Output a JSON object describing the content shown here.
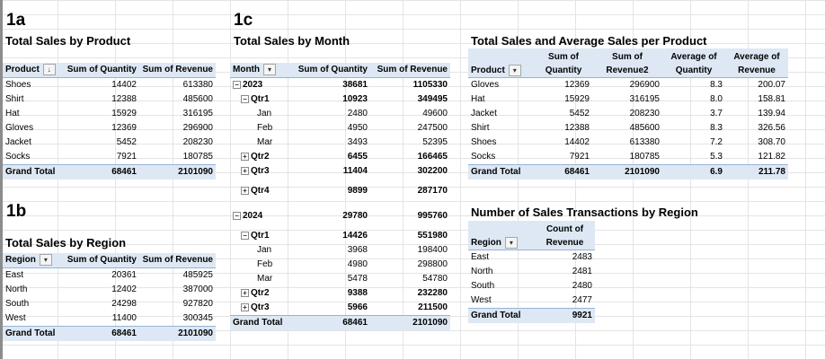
{
  "sections": {
    "s1a": "1a",
    "s1b": "1b",
    "s1c": "1c"
  },
  "icons": {
    "filter_dropdown": "chevron-down-icon",
    "sort_filter": "sort-filter-icon",
    "collapse": "minus-box-icon",
    "expand": "plus-box-icon"
  },
  "colors": {
    "pivot_header_bg": "#dde8f4",
    "pivot_border": "#95b3d7",
    "gridline": "#e4e4e4"
  },
  "product_pivot": {
    "title": "Total Sales by Product",
    "headers": [
      "Product",
      "Sum of Quantity",
      "Sum of Revenue"
    ],
    "rows": [
      [
        "Shoes",
        "14402",
        "613380"
      ],
      [
        "Shirt",
        "12388",
        "485600"
      ],
      [
        "Hat",
        "15929",
        "316195"
      ],
      [
        "Gloves",
        "12369",
        "296900"
      ],
      [
        "Jacket",
        "5452",
        "208230"
      ],
      [
        "Socks",
        "7921",
        "180785"
      ]
    ],
    "total": [
      "Grand Total",
      "68461",
      "2101090"
    ]
  },
  "region_pivot": {
    "title": "Total Sales by Region",
    "headers": [
      "Region",
      "Sum of Quantity",
      "Sum of Revenue"
    ],
    "rows": [
      [
        "East",
        "20361",
        "485925"
      ],
      [
        "North",
        "12402",
        "387000"
      ],
      [
        "South",
        "24298",
        "927820"
      ],
      [
        "West",
        "11400",
        "300345"
      ]
    ],
    "total": [
      "Grand Total",
      "68461",
      "2101090"
    ]
  },
  "month_pivot": {
    "title": "Total Sales by Month",
    "headers": [
      "Month",
      "Sum of Quantity",
      "Sum of Revenue"
    ],
    "rows": [
      {
        "kind": "yr",
        "toggle": "⊟",
        "label": "2023",
        "qty": "38681",
        "rev": "1105330"
      },
      {
        "kind": "q",
        "toggle": "⊟",
        "label": "Qtr1",
        "qty": "10923",
        "rev": "349495"
      },
      {
        "kind": "mo",
        "label": "Jan",
        "qty": "2480",
        "rev": "49600"
      },
      {
        "kind": "mo",
        "label": "Feb",
        "qty": "4950",
        "rev": "247500"
      },
      {
        "kind": "mo",
        "label": "Mar",
        "qty": "3493",
        "rev": "52395"
      },
      {
        "kind": "q",
        "toggle": "⊞",
        "label": "Qtr2",
        "qty": "6455",
        "rev": "166465"
      },
      {
        "kind": "q",
        "toggle": "⊞",
        "label": "Qtr3",
        "qty": "11404",
        "rev": "302200"
      },
      {
        "kind": "q",
        "toggle": "⊞",
        "label": "Qtr4",
        "qty": "9899",
        "rev": "287170"
      },
      {
        "kind": "yr",
        "toggle": "⊟",
        "label": "2024",
        "qty": "29780",
        "rev": "995760"
      },
      {
        "kind": "q",
        "toggle": "⊟",
        "label": "Qtr1",
        "qty": "14426",
        "rev": "551980"
      },
      {
        "kind": "mo",
        "label": "Jan",
        "qty": "3968",
        "rev": "198400"
      },
      {
        "kind": "mo",
        "label": "Feb",
        "qty": "4980",
        "rev": "298800"
      },
      {
        "kind": "mo",
        "label": "Mar",
        "qty": "5478",
        "rev": "54780"
      },
      {
        "kind": "q",
        "toggle": "⊞",
        "label": "Qtr2",
        "qty": "9388",
        "rev": "232280"
      },
      {
        "kind": "q",
        "toggle": "⊞",
        "label": "Qtr3",
        "qty": "5966",
        "rev": "211500"
      }
    ],
    "total": [
      "Grand Total",
      "68461",
      "2101090"
    ]
  },
  "avg_pivot": {
    "title": "Total Sales and Average Sales per Product",
    "headers": [
      "Product",
      "Sum of Quantity",
      "Sum of Revenue2",
      "Average of Quantity",
      "Average of Revenue"
    ],
    "rows": [
      [
        "Gloves",
        "12369",
        "296900",
        "8.3",
        "200.07"
      ],
      [
        "Hat",
        "15929",
        "316195",
        "8.0",
        "158.81"
      ],
      [
        "Jacket",
        "5452",
        "208230",
        "3.7",
        "139.94"
      ],
      [
        "Shirt",
        "12388",
        "485600",
        "8.3",
        "326.56"
      ],
      [
        "Shoes",
        "14402",
        "613380",
        "7.2",
        "308.70"
      ],
      [
        "Socks",
        "7921",
        "180785",
        "5.3",
        "121.82"
      ]
    ],
    "total": [
      "Grand Total",
      "68461",
      "2101090",
      "6.9",
      "211.78"
    ]
  },
  "count_pivot": {
    "title": "Number of Sales Transactions by Region",
    "headers": [
      "Region",
      "Count of Revenue"
    ],
    "rows": [
      [
        "East",
        "2483"
      ],
      [
        "North",
        "2481"
      ],
      [
        "South",
        "2480"
      ],
      [
        "West",
        "2477"
      ]
    ],
    "total": [
      "Grand Total",
      "9921"
    ]
  }
}
